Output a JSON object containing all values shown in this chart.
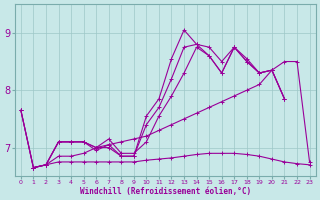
{
  "xlabel": "Windchill (Refroidissement éolien,°C)",
  "ylabel": "",
  "xlim": [
    -0.5,
    23.5
  ],
  "ylim": [
    6.5,
    9.5
  ],
  "yticks": [
    7,
    8,
    9
  ],
  "xticks": [
    0,
    1,
    2,
    3,
    4,
    5,
    6,
    7,
    8,
    9,
    10,
    11,
    12,
    13,
    14,
    15,
    16,
    17,
    18,
    19,
    20,
    21,
    22,
    23
  ],
  "bg_color": "#c8e8e8",
  "line_color": "#990099",
  "grid_color": "#9ec8c8",
  "lines": [
    {
      "x": [
        0,
        1,
        2,
        3,
        4,
        5,
        6,
        7,
        8,
        9,
        10,
        11,
        12,
        13,
        14,
        15,
        16,
        17,
        18,
        19,
        20,
        21,
        22,
        23
      ],
      "y": [
        7.65,
        6.65,
        6.7,
        7.1,
        7.1,
        7.1,
        6.95,
        7.05,
        6.85,
        6.85,
        7.55,
        7.85,
        8.55,
        9.05,
        8.8,
        8.75,
        8.5,
        8.75,
        8.5,
        8.3,
        8.35,
        7.85,
        null,
        null
      ]
    },
    {
      "x": [
        0,
        1,
        2,
        3,
        4,
        5,
        6,
        7,
        8,
        9,
        10,
        11,
        12,
        13,
        14,
        15,
        16,
        17,
        18,
        19,
        20,
        21,
        22,
        23
      ],
      "y": [
        7.65,
        6.65,
        6.7,
        7.1,
        7.1,
        7.1,
        7.0,
        7.0,
        6.85,
        6.85,
        7.4,
        7.7,
        8.2,
        8.75,
        8.8,
        8.6,
        8.3,
        8.75,
        8.5,
        8.3,
        8.35,
        7.85,
        null,
        null
      ]
    },
    {
      "x": [
        1,
        2,
        3,
        4,
        5,
        6,
        7,
        8,
        9,
        10,
        11,
        12,
        13,
        14,
        15,
        16,
        17,
        18,
        19,
        20,
        21,
        22,
        23
      ],
      "y": [
        6.65,
        6.7,
        7.1,
        7.1,
        7.1,
        7.0,
        7.15,
        6.9,
        6.9,
        7.1,
        7.55,
        7.9,
        8.3,
        8.75,
        8.6,
        8.3,
        8.75,
        8.55,
        8.3,
        8.35,
        7.85,
        null,
        null
      ]
    },
    {
      "x": [
        0,
        1,
        2,
        3,
        4,
        5,
        6,
        7,
        8,
        9,
        10,
        11,
        12,
        13,
        14,
        15,
        16,
        17,
        18,
        19,
        20,
        21,
        22,
        23
      ],
      "y": [
        7.65,
        6.65,
        6.7,
        6.85,
        6.85,
        6.9,
        7.0,
        7.05,
        7.1,
        7.15,
        7.2,
        7.3,
        7.4,
        7.5,
        7.6,
        7.7,
        7.8,
        7.9,
        8.0,
        8.1,
        8.35,
        8.5,
        8.5,
        6.75
      ]
    },
    {
      "x": [
        1,
        2,
        3,
        4,
        5,
        6,
        7,
        8,
        9,
        10,
        11,
        12,
        13,
        14,
        15,
        16,
        17,
        18,
        19,
        20,
        21,
        22,
        23
      ],
      "y": [
        6.65,
        6.7,
        6.75,
        6.75,
        6.75,
        6.75,
        6.75,
        6.75,
        6.75,
        6.78,
        6.8,
        6.82,
        6.85,
        6.88,
        6.9,
        6.9,
        6.9,
        6.88,
        6.85,
        6.8,
        6.75,
        6.72,
        6.7
      ]
    }
  ],
  "marker": "+",
  "markersize": 3,
  "linewidth": 0.8
}
